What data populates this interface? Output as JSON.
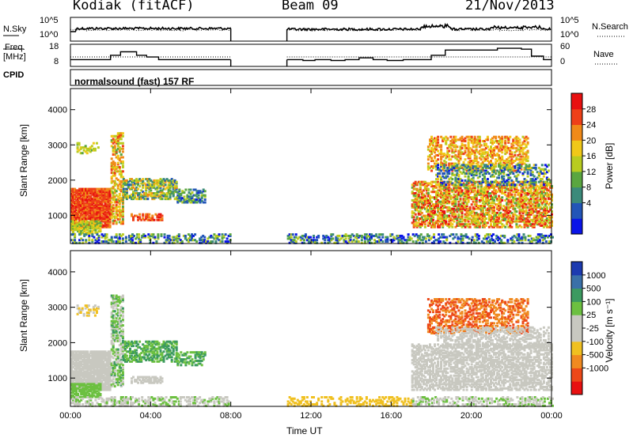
{
  "header": {
    "station": "Kodiak (fitACF)",
    "beam": "Beam 09",
    "date": "21/Nov/2013"
  },
  "panels": {
    "nsky": {
      "left_label": "N.Sky",
      "left_ticks": [
        "10^5",
        "10^0"
      ],
      "right_ticks": [
        "10^5",
        "10^0"
      ],
      "right_label": "N.Search"
    },
    "freq": {
      "left_label_1": "Freq.",
      "left_label_2": "[MHz]",
      "left_ticks": [
        "18",
        "8"
      ],
      "right_ticks": [
        "60",
        "0"
      ],
      "right_label": "Nave"
    },
    "cpid": {
      "label": "CPID",
      "text": "normalsound (fast) 157 RF"
    }
  },
  "chart_data": [
    {
      "type": "heatmap",
      "name": "power",
      "ylabel": "Slant Range [km]",
      "ylim": [
        200,
        4600
      ],
      "yticks": [
        "4000",
        "3000",
        "2000",
        "1000"
      ],
      "colorbar_label": "Power [dB]",
      "colorbar_ticks": [
        "28",
        "24",
        "20",
        "16",
        "12",
        "8",
        "4"
      ],
      "colors": [
        "#0a14e8",
        "#2255b8",
        "#3b8a7a",
        "#5aa640",
        "#b8cc20",
        "#f0c818",
        "#f08a18",
        "#ee4018",
        "#e81010"
      ]
    },
    {
      "type": "heatmap",
      "name": "velocity",
      "ylabel": "Slant Range [km]",
      "ylim": [
        200,
        4600
      ],
      "yticks": [
        "4000",
        "3000",
        "2000",
        "1000"
      ],
      "colorbar_label": "Velocity [m s⁻¹]",
      "colorbar_ticks": [
        "1000",
        "500",
        "100",
        "25",
        "-25",
        "-100",
        "-500",
        "-1000"
      ],
      "colors": [
        "#1c3ab0",
        "#3a70a8",
        "#3c9a60",
        "#6cc040",
        "#c8c8c0",
        "#c8c8c0",
        "#f0c020",
        "#f08a20",
        "#ec4818",
        "#e81010"
      ]
    }
  ],
  "xaxis": {
    "ticks": [
      "00:00",
      "04:00",
      "08:00",
      "12:00",
      "16:00",
      "20:00",
      "00:00"
    ],
    "label": "Time UT"
  }
}
